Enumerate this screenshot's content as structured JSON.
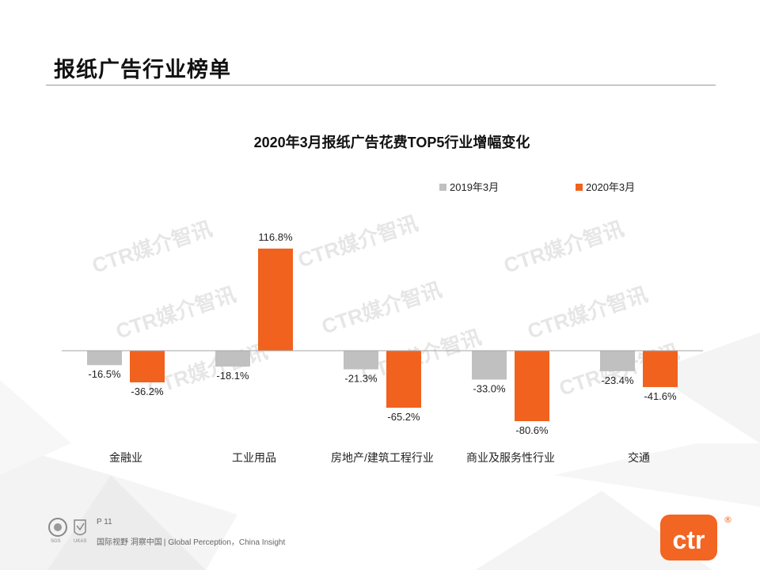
{
  "page": {
    "title": "报纸广告行业榜单",
    "page_number": "P 11",
    "tagline_cn": "国际视野 洞察中国",
    "tagline_sep": "|",
    "tagline_en": "Global Perception，China Insight",
    "watermark": "CTR媒介智讯",
    "brand_logo_text": "ctr",
    "registered_mark": "®",
    "cert_text": "SGS",
    "cert_text_2": "UKAS"
  },
  "colors": {
    "series_2019": "#c0c0c0",
    "series_2020": "#f0621e",
    "brand": "#f26522",
    "axis": "#a6a6a6",
    "text": "#222222"
  },
  "chart_data": {
    "type": "bar",
    "title": "2020年3月报纸广告花费TOP5行业增幅变化",
    "categories": [
      "金融业",
      "工业用品",
      "房地产/建筑工程行业",
      "商业及服务性行业",
      "交通"
    ],
    "series": [
      {
        "name": "2019年3月",
        "values": [
          -16.5,
          -18.1,
          -21.3,
          -33.0,
          -23.4
        ],
        "labels": [
          "-16.5%",
          "-18.1%",
          "-21.3%",
          "-33.0%",
          "-23.4%"
        ]
      },
      {
        "name": "2020年3月",
        "values": [
          -36.2,
          116.8,
          -65.2,
          -80.6,
          -41.6
        ],
        "labels": [
          "-36.2%",
          "116.8%",
          "-65.2%",
          "-80.6%",
          "-41.6%"
        ]
      }
    ],
    "unit": "%",
    "ylim": [
      -100,
      150
    ],
    "xlabel": "",
    "ylabel": "",
    "grid": false,
    "legend_position": "top-right"
  }
}
